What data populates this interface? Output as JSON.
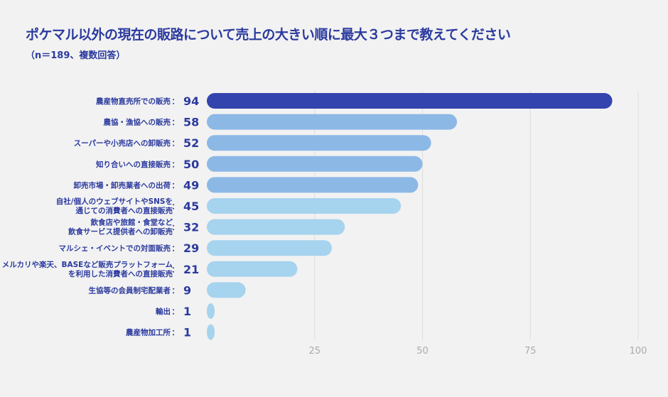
{
  "chart_data": {
    "type": "bar",
    "orientation": "horizontal",
    "title": "ポケマル以外の現在の販路について売上の大きい順に最大３つまで教えてください",
    "subtitle": "（n＝189、複数回答）",
    "categories": [
      [
        "農産物直売所での販売"
      ],
      [
        "農協・漁協への販売"
      ],
      [
        "スーパーや小売店への卸販売"
      ],
      [
        "知り合いへの直接販売"
      ],
      [
        "卸売市場・卸売業者への出荷"
      ],
      [
        "自社/個人のウェブサイトやSNSを",
        "通じての消費者への直接販売"
      ],
      [
        "飲食店や旅館・食堂など",
        "飲食サービス提供者への卸販売"
      ],
      [
        "マルシェ・イベントでの対面販売"
      ],
      [
        "メルカリや楽天、BASEなど販売プラットフォーム",
        "を利用した消費者への直接販売"
      ],
      [
        "生協等の会員制宅配業者"
      ],
      [
        "輸出"
      ],
      [
        "農産物加工所"
      ]
    ],
    "values": [
      94,
      58,
      52,
      50,
      49,
      45,
      32,
      29,
      21,
      9,
      1,
      1
    ],
    "colors": [
      "#3444ae",
      "#8cb8e6",
      "#8cb8e6",
      "#8cb8e6",
      "#8cb8e6",
      "#a6d3ee",
      "#a6d3ee",
      "#a6d3ee",
      "#a6d3ee",
      "#a6d3ee",
      "#a6d3ee",
      "#a6d3ee"
    ],
    "xlim": [
      0,
      100
    ],
    "xticks": [
      25,
      50,
      75,
      100
    ],
    "grid": true
  }
}
